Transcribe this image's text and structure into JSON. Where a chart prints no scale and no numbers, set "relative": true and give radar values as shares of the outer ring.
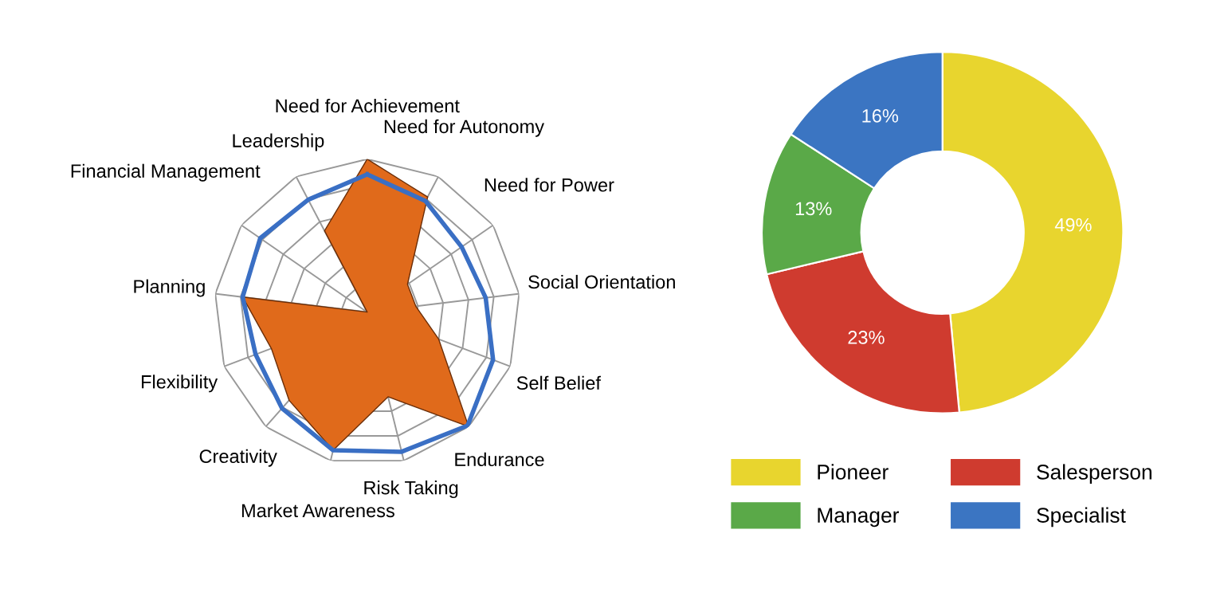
{
  "chart_data": [
    {
      "type": "radar",
      "relative": true,
      "grid": true,
      "categories": [
        "Need for Achievement",
        "Need for Autonomy",
        "Need for Power",
        "Social Orientation",
        "Self Belief",
        "Endurance",
        "Risk Taking",
        "Market Awareness",
        "Creativity",
        "Flexibility",
        "Planning",
        "Financial Management",
        "Leadership"
      ],
      "series": [
        {
          "type": "area",
          "color": "#e06a1b",
          "values": [
            1.0,
            0.85,
            0.32,
            0.32,
            0.5,
            1.0,
            0.57,
            0.93,
            0.77,
            0.67,
            0.82,
            0.0,
            0.6
          ]
        },
        {
          "color": "#3a6fc4",
          "values": [
            0.9,
            0.82,
            0.75,
            0.78,
            0.88,
            0.99,
            0.94,
            0.93,
            0.84,
            0.78,
            0.82,
            0.85,
            0.83
          ]
        }
      ]
    },
    {
      "type": "donut",
      "legend": "bottom",
      "categories": [
        "Pioneer",
        "Salesperson",
        "Manager",
        "Specialist"
      ],
      "values": [
        49,
        23,
        13,
        16
      ],
      "value_labels": [
        "49%",
        "23%",
        "13%",
        "16%"
      ],
      "colors": [
        "#e8d52e",
        "#cf3b2f",
        "#5aa948",
        "#3b75c2"
      ]
    }
  ]
}
